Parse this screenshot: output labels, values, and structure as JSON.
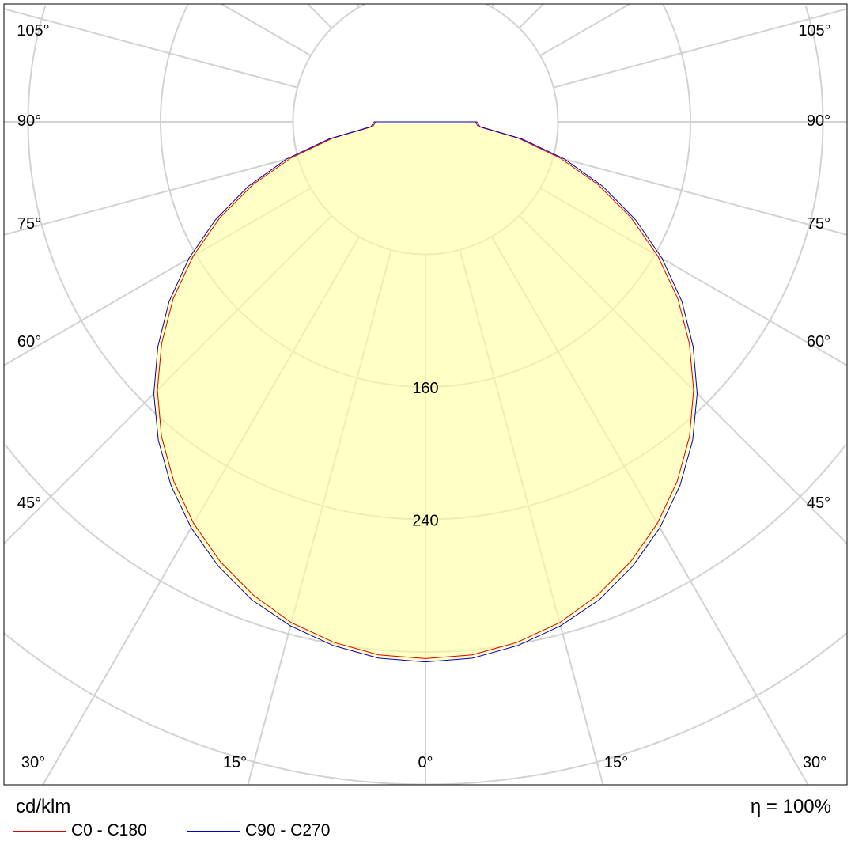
{
  "chart_data": {
    "type": "polar",
    "unit_label": "cd/klm",
    "efficiency_label": "η = 100%",
    "angle_labels": [
      "0°",
      "15°",
      "30°",
      "45°",
      "60°",
      "75°",
      "90°",
      "105°"
    ],
    "radial_ticks": [
      80,
      160,
      240,
      320,
      400,
      480,
      560
    ],
    "radial_labels_shown": [
      "160",
      "240"
    ],
    "angles_deg": [
      0,
      5,
      10,
      15,
      20,
      25,
      30,
      35,
      40,
      45,
      50,
      55,
      60,
      65,
      70,
      75,
      80,
      85,
      90
    ],
    "series": [
      {
        "name": "C0 - C180",
        "color": "#e00000",
        "values": [
          324,
          323,
          319,
          313,
          304,
          293,
          280,
          265,
          248,
          229,
          208,
          186,
          162,
          137,
          111,
          84,
          57,
          32,
          30
        ]
      },
      {
        "name": "C90 - C270",
        "color": "#0000c0",
        "values": [
          326,
          325,
          321,
          315,
          307,
          296,
          283,
          268,
          251,
          232,
          211,
          189,
          165,
          140,
          114,
          87,
          59,
          33,
          31
        ]
      }
    ],
    "fill_color": "#ffffa0",
    "grid": true,
    "legend_position": "bottom-left"
  }
}
